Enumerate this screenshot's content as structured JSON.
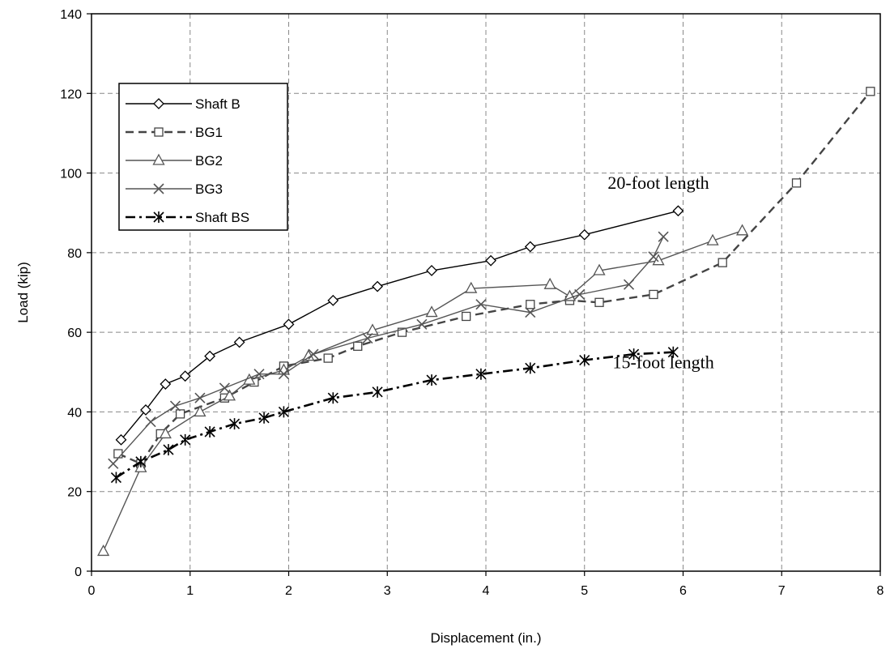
{
  "chart_data": {
    "type": "line",
    "title": "",
    "xlabel": "Displacement (in.)",
    "ylabel": "Load (kip)",
    "xlim": [
      0,
      8
    ],
    "ylim": [
      0,
      140
    ],
    "xticks": [
      0,
      1,
      2,
      3,
      4,
      5,
      6,
      7,
      8
    ],
    "yticks": [
      0,
      20,
      40,
      60,
      80,
      100,
      120,
      140
    ],
    "grid": true,
    "legend_position": "upper-left",
    "series": [
      {
        "name": "Shaft B",
        "marker": "diamond",
        "dash": "solid",
        "color": "#000000",
        "points": [
          [
            0.3,
            33
          ],
          [
            0.55,
            40.5
          ],
          [
            0.75,
            47
          ],
          [
            0.95,
            49
          ],
          [
            1.2,
            54
          ],
          [
            1.5,
            57.5
          ],
          [
            2.0,
            62
          ],
          [
            2.45,
            68
          ],
          [
            2.9,
            71.5
          ],
          [
            3.45,
            75.5
          ],
          [
            4.05,
            78
          ],
          [
            4.45,
            81.5
          ],
          [
            5.0,
            84.5
          ],
          [
            5.95,
            90.5
          ]
        ]
      },
      {
        "name": "BG1",
        "marker": "square",
        "dash": "dashed",
        "color": "#444444",
        "points": [
          [
            0.27,
            29.5
          ],
          [
            0.5,
            27
          ],
          [
            0.7,
            34.5
          ],
          [
            0.9,
            39.5
          ],
          [
            1.35,
            43.5
          ],
          [
            1.65,
            47.5
          ],
          [
            1.95,
            51.5
          ],
          [
            2.4,
            53.5
          ],
          [
            2.7,
            56.5
          ],
          [
            3.15,
            60
          ],
          [
            3.8,
            64
          ],
          [
            4.45,
            67
          ],
          [
            4.85,
            68
          ],
          [
            5.15,
            67.5
          ],
          [
            5.7,
            69.5
          ],
          [
            6.4,
            77.5
          ],
          [
            7.15,
            97.5
          ],
          [
            7.9,
            120.5
          ]
        ]
      },
      {
        "name": "BG2",
        "marker": "triangle",
        "dash": "solid",
        "color": "#555555",
        "points": [
          [
            0.12,
            5
          ],
          [
            0.5,
            26
          ],
          [
            0.75,
            34.5
          ],
          [
            1.1,
            40
          ],
          [
            1.4,
            44
          ],
          [
            1.6,
            48
          ],
          [
            1.95,
            50.5
          ],
          [
            2.2,
            54
          ],
          [
            2.85,
            60.5
          ],
          [
            3.45,
            65
          ],
          [
            3.85,
            71
          ],
          [
            4.65,
            72
          ],
          [
            4.85,
            69
          ],
          [
            5.15,
            75.5
          ],
          [
            5.75,
            78
          ],
          [
            6.3,
            83
          ],
          [
            6.6,
            85.5
          ]
        ]
      },
      {
        "name": "BG3",
        "marker": "x",
        "dash": "solid",
        "color": "#555555",
        "points": [
          [
            0.22,
            27
          ],
          [
            0.6,
            37.5
          ],
          [
            0.85,
            41.5
          ],
          [
            1.1,
            43.5
          ],
          [
            1.35,
            46
          ],
          [
            1.7,
            49.5
          ],
          [
            1.95,
            49.5
          ],
          [
            2.25,
            54.5
          ],
          [
            2.8,
            58.5
          ],
          [
            3.35,
            62
          ],
          [
            3.95,
            67
          ],
          [
            4.45,
            65
          ],
          [
            4.95,
            69.5
          ],
          [
            5.45,
            72
          ],
          [
            5.7,
            79
          ],
          [
            5.8,
            84
          ]
        ]
      },
      {
        "name": "Shaft BS",
        "marker": "asterisk",
        "dash": "dashdot",
        "color": "#000000",
        "points": [
          [
            0.25,
            23.5
          ],
          [
            0.5,
            27.5
          ],
          [
            0.78,
            30.5
          ],
          [
            0.95,
            33
          ],
          [
            1.2,
            35
          ],
          [
            1.45,
            37
          ],
          [
            1.75,
            38.5
          ],
          [
            1.95,
            40
          ],
          [
            2.45,
            43.5
          ],
          [
            2.9,
            45
          ],
          [
            3.45,
            48
          ],
          [
            3.95,
            49.5
          ],
          [
            4.45,
            51
          ],
          [
            5.0,
            53
          ],
          [
            5.5,
            54.5
          ],
          [
            5.9,
            55
          ]
        ]
      }
    ],
    "annotations": [
      {
        "text": "20-foot length",
        "x": 5.75,
        "y": 96
      },
      {
        "text": "15-foot length",
        "x": 5.8,
        "y": 51
      }
    ]
  }
}
